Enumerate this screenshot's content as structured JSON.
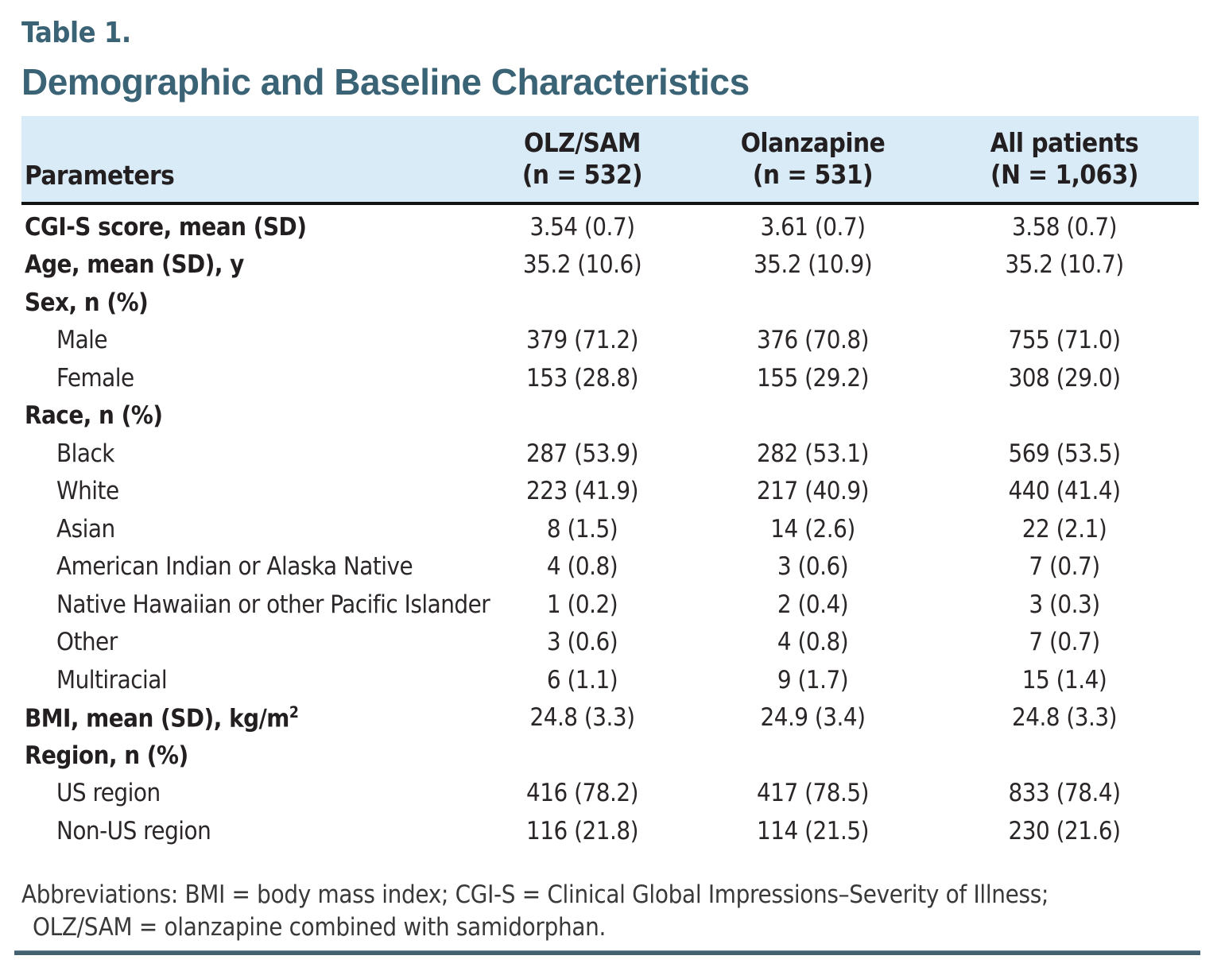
{
  "table_label": "Table 1.",
  "heading": "Demographic and Baseline Characteristics",
  "header": {
    "parameters_label": "Parameters",
    "groups": [
      {
        "line1": "OLZ/SAM",
        "line2": "(n = 532)"
      },
      {
        "line1": "Olanzapine",
        "line2": "(n = 531)"
      },
      {
        "line1": "All patients",
        "line2": "(N = 1,063)"
      }
    ]
  },
  "rows": [
    {
      "label": "CGI-S score, mean (SD)",
      "bold": true,
      "indent": false,
      "values": [
        "3.54 (0.7)",
        "3.61 (0.7)",
        "3.58 (0.7)"
      ]
    },
    {
      "label": "Age, mean (SD), y",
      "bold": true,
      "indent": false,
      "values": [
        "35.2 (10.6)",
        "35.2 (10.9)",
        "35.2 (10.7)"
      ]
    },
    {
      "label": "Sex, n (%)",
      "bold": true,
      "indent": false,
      "values": [
        "",
        "",
        ""
      ]
    },
    {
      "label": "Male",
      "bold": false,
      "indent": true,
      "values": [
        "379 (71.2)",
        "376 (70.8)",
        "755 (71.0)"
      ]
    },
    {
      "label": "Female",
      "bold": false,
      "indent": true,
      "values": [
        "153 (28.8)",
        "155 (29.2)",
        "308 (29.0)"
      ]
    },
    {
      "label": "Race, n (%)",
      "bold": true,
      "indent": false,
      "values": [
        "",
        "",
        ""
      ]
    },
    {
      "label": "Black",
      "bold": false,
      "indent": true,
      "values": [
        "287 (53.9)",
        "282 (53.1)",
        "569 (53.5)"
      ]
    },
    {
      "label": "White",
      "bold": false,
      "indent": true,
      "values": [
        "223 (41.9)",
        "217 (40.9)",
        "440 (41.4)"
      ]
    },
    {
      "label": "Asian",
      "bold": false,
      "indent": true,
      "values": [
        "8 (1.5)",
        "14 (2.6)",
        "22 (2.1)"
      ]
    },
    {
      "label": "American Indian or Alaska Native",
      "bold": false,
      "indent": true,
      "values": [
        "4 (0.8)",
        "3 (0.6)",
        "7 (0.7)"
      ]
    },
    {
      "label": "Native Hawaiian or other Pacific Islander",
      "bold": false,
      "indent": true,
      "values": [
        "1 (0.2)",
        "2 (0.4)",
        "3 (0.3)"
      ]
    },
    {
      "label": "Other",
      "bold": false,
      "indent": true,
      "values": [
        "3 (0.6)",
        "4 (0.8)",
        "7 (0.7)"
      ]
    },
    {
      "label": "Multiracial",
      "bold": false,
      "indent": true,
      "values": [
        "6 (1.1)",
        "9 (1.7)",
        "15 (1.4)"
      ]
    },
    {
      "label": "BMI, mean (SD), kg/m",
      "sup": "2",
      "bold": true,
      "indent": false,
      "values": [
        "24.8 (3.3)",
        "24.9 (3.4)",
        "24.8 (3.3)"
      ]
    },
    {
      "label": "Region, n (%)",
      "bold": true,
      "indent": false,
      "values": [
        "",
        "",
        ""
      ]
    },
    {
      "label": "US region",
      "bold": false,
      "indent": true,
      "values": [
        "416 (78.2)",
        "417 (78.5)",
        "833 (78.4)"
      ]
    },
    {
      "label": "Non-US region",
      "bold": false,
      "indent": true,
      "values": [
        "116 (21.8)",
        "114 (21.5)",
        "230 (21.6)"
      ]
    }
  ],
  "footnote": {
    "line1": "Abbreviations: BMI = body mass index; CGI-S = Clinical Global Impressions–Severity of Illness;",
    "line2": "OLZ/SAM = olanzapine combined with samidorphan."
  },
  "colors": {
    "heading_teal": "#3a6376",
    "header_band_blue": "#d9ebf6",
    "header_rule_black": "#131313",
    "bottom_rule_teal": "#45616f",
    "body_text": "#231f20"
  }
}
